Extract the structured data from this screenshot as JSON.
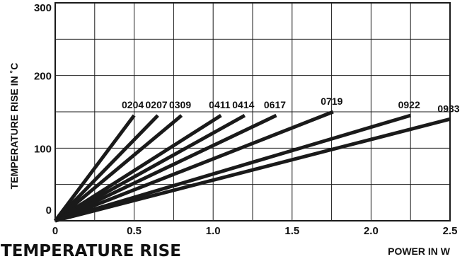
{
  "chart_data": {
    "type": "line",
    "title": "TEMPERATURE RISE",
    "xlabel": "POWER IN W",
    "ylabel": "TEMPERATURE RISE IN ˚C",
    "xlim": [
      0,
      2.5
    ],
    "ylim": [
      0,
      300
    ],
    "x_ticks": [
      "0",
      "0.5",
      "1.0",
      "1.5",
      "2.0",
      "2.5"
    ],
    "y_ticks": [
      "0",
      "100",
      "200",
      "300"
    ],
    "grid": true,
    "colors": {
      "line": "#1a1a1a",
      "grid": "#1a1a1a",
      "background": "#ffffff"
    },
    "series": [
      {
        "name": "0204",
        "x": [
          0,
          0.5
        ],
        "y": [
          0,
          145
        ]
      },
      {
        "name": "0207",
        "x": [
          0,
          0.65
        ],
        "y": [
          0,
          145
        ]
      },
      {
        "name": "0309",
        "x": [
          0,
          0.8
        ],
        "y": [
          0,
          145
        ]
      },
      {
        "name": "0411",
        "x": [
          0,
          1.05
        ],
        "y": [
          0,
          145
        ]
      },
      {
        "name": "0414",
        "x": [
          0,
          1.2
        ],
        "y": [
          0,
          145
        ]
      },
      {
        "name": "0617",
        "x": [
          0,
          1.4
        ],
        "y": [
          0,
          145
        ]
      },
      {
        "name": "0719",
        "x": [
          0,
          1.76
        ],
        "y": [
          0,
          150
        ]
      },
      {
        "name": "0922",
        "x": [
          0,
          2.25
        ],
        "y": [
          0,
          145
        ]
      },
      {
        "name": "0933",
        "x": [
          0,
          2.5
        ],
        "y": [
          0,
          140
        ]
      }
    ]
  }
}
